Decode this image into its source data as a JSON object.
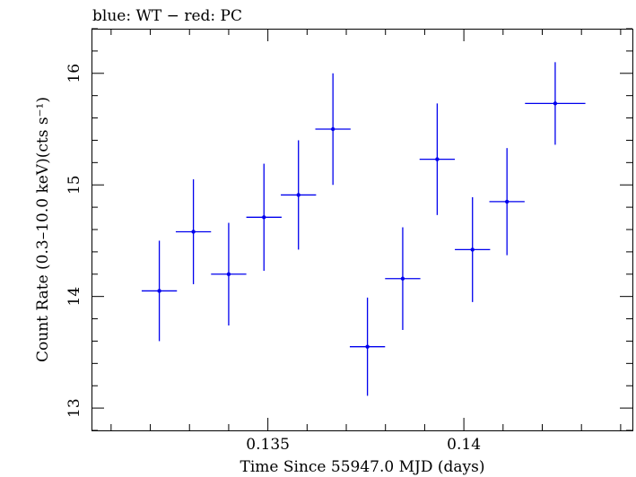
{
  "chart_data": {
    "type": "scatter",
    "title": "blue: WT − red: PC",
    "xlabel": "Time Since 55947.0 MJD (days)",
    "ylabel": "Count Rate (0.3–10.0 keV)(cts s⁻¹)",
    "xlim": [
      0.1305,
      0.1443
    ],
    "ylim": [
      12.8,
      16.4
    ],
    "x_ticks": [
      {
        "value": 0.135,
        "label": "0.135"
      },
      {
        "value": 0.14,
        "label": "0.14"
      }
    ],
    "y_ticks": [
      {
        "value": 13,
        "label": "13"
      },
      {
        "value": 14,
        "label": "14"
      },
      {
        "value": 15,
        "label": "15"
      },
      {
        "value": 16,
        "label": "16"
      }
    ],
    "series": [
      {
        "color": "#0000ee",
        "points": [
          {
            "x": 0.13223,
            "xerr": 0.00045,
            "y": 14.05,
            "yerr": 0.45
          },
          {
            "x": 0.1331,
            "xerr": 0.00045,
            "y": 14.58,
            "yerr": 0.47
          },
          {
            "x": 0.134,
            "xerr": 0.00045,
            "y": 14.2,
            "yerr": 0.46
          },
          {
            "x": 0.1349,
            "xerr": 0.00045,
            "y": 14.71,
            "yerr": 0.48
          },
          {
            "x": 0.13578,
            "xerr": 0.00045,
            "y": 14.91,
            "yerr": 0.49
          },
          {
            "x": 0.13666,
            "xerr": 0.00045,
            "y": 15.5,
            "yerr": 0.5
          },
          {
            "x": 0.13754,
            "xerr": 0.00045,
            "y": 13.55,
            "yerr": 0.44
          },
          {
            "x": 0.13844,
            "xerr": 0.00045,
            "y": 14.16,
            "yerr": 0.46
          },
          {
            "x": 0.13932,
            "xerr": 0.00045,
            "y": 15.23,
            "yerr": 0.5
          },
          {
            "x": 0.14022,
            "xerr": 0.00045,
            "y": 14.42,
            "yerr": 0.47
          },
          {
            "x": 0.1411,
            "xerr": 0.00045,
            "y": 14.85,
            "yerr": 0.48
          },
          {
            "x": 0.14233,
            "xerr": 0.00077,
            "y": 15.73,
            "yerr": 0.37
          }
        ]
      }
    ]
  }
}
